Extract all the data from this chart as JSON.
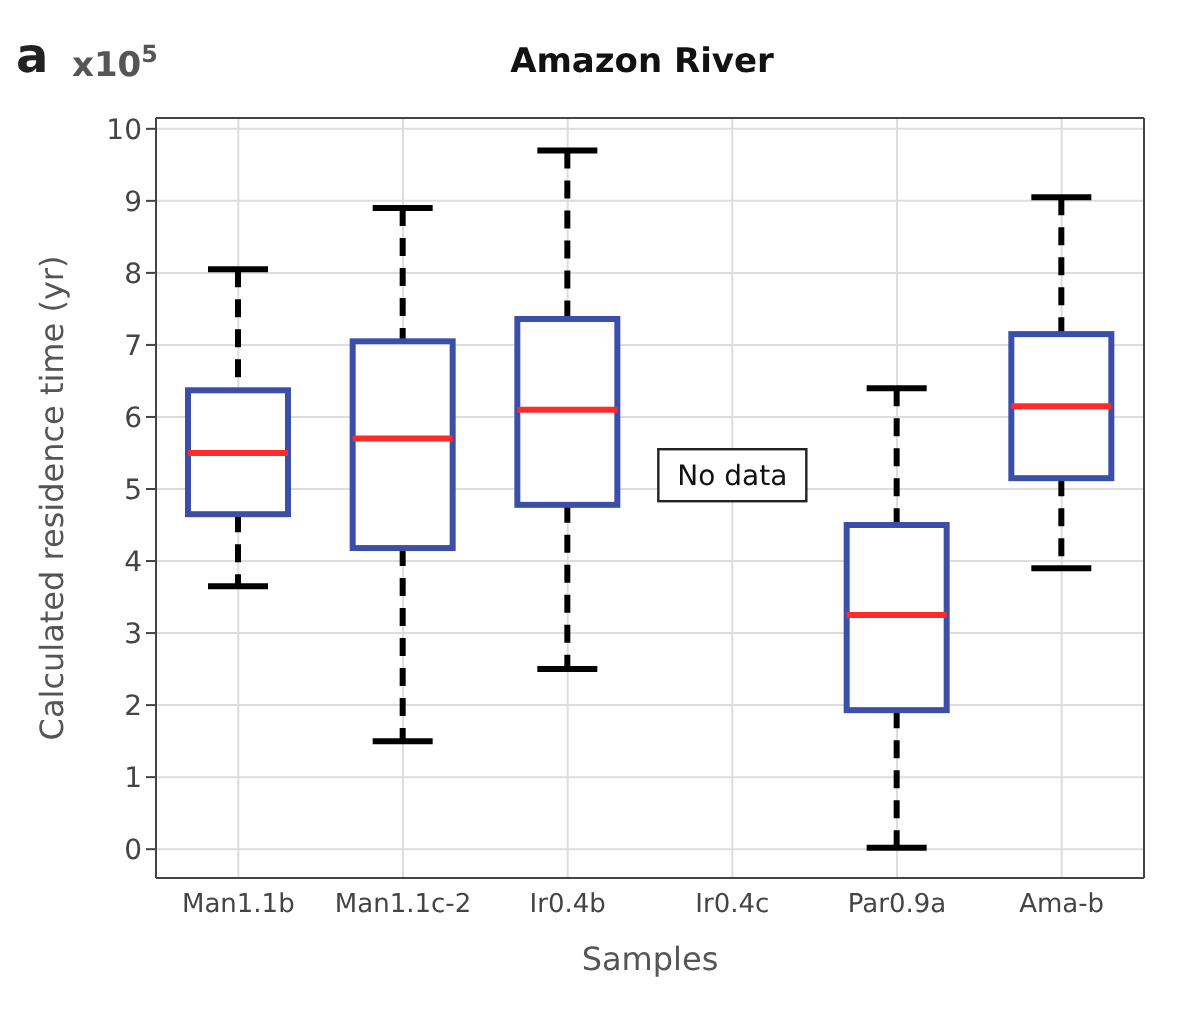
{
  "chart_data": {
    "type": "box",
    "title": "Amazon River",
    "xlabel": "Samples",
    "ylabel": "Calculated residence time (yr)",
    "categories": [
      "Man1.1b",
      "Man1.1c-2",
      "Ir0.4b",
      "Ir0.4c",
      "Par0.9a",
      "Ama-b"
    ],
    "series": [
      {
        "color": "#3b4fa8",
        "boxes": [
          {
            "low": 3.65,
            "q1": 4.65,
            "median": 5.5,
            "q3": 6.37,
            "high": 8.05
          },
          {
            "low": 1.5,
            "q1": 4.18,
            "median": 5.7,
            "q3": 7.05,
            "high": 8.9
          },
          {
            "low": 2.5,
            "q1": 4.78,
            "median": 6.1,
            "q3": 7.36,
            "high": 9.7
          },
          null,
          {
            "low": 0.02,
            "q1": 1.93,
            "median": 3.25,
            "q3": 4.5,
            "high": 6.4
          },
          {
            "low": 3.9,
            "q1": 5.15,
            "median": 6.15,
            "q3": 7.15,
            "high": 9.05
          }
        ]
      }
    ],
    "ylim": [
      -0.4,
      10.15
    ],
    "yticks": [
      0,
      1,
      2,
      3,
      4,
      5,
      6,
      7,
      8,
      9,
      10
    ],
    "grid": true,
    "annotations": [
      "a",
      "x10$^{5}$",
      "No data"
    ]
  }
}
